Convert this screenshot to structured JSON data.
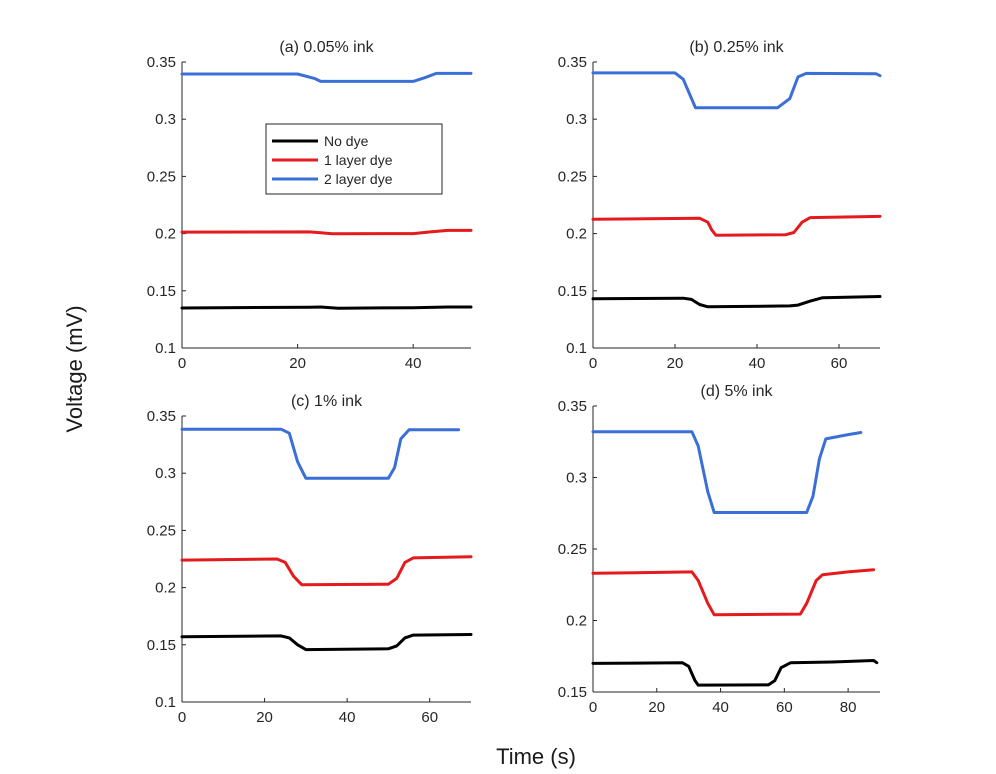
{
  "figure": {
    "ylabel": "Voltage (mV)",
    "xlabel": "Time (s)"
  },
  "legend": [
    {
      "label": "No dye",
      "color": "#000000"
    },
    {
      "label": "1 layer dye",
      "color": "#e41a1c"
    },
    {
      "label": "2 layer dye",
      "color": "#3a6fd8"
    }
  ],
  "chart_data": [
    {
      "type": "line",
      "title": "(a) 0.05% ink",
      "xlim": [
        0,
        50
      ],
      "ylim": [
        0.1,
        0.35
      ],
      "xticks": [
        0,
        20,
        40
      ],
      "yticks": [
        0.1,
        0.15,
        0.2,
        0.25,
        0.3,
        0.35
      ],
      "ytick_labels": [
        "0.1",
        "0.15",
        "0.2",
        "0.25",
        "0.3",
        "0.35"
      ],
      "has_legend": true,
      "series": [
        {
          "name": "No dye",
          "color": "#000000",
          "x": [
            0,
            22,
            24,
            27,
            40,
            46,
            50
          ],
          "y": [
            0.135,
            0.1357,
            0.1358,
            0.1348,
            0.1352,
            0.1358,
            0.1358
          ]
        },
        {
          "name": "1 layer dye",
          "color": "#e41a1c",
          "x": [
            0,
            22,
            24,
            26,
            40,
            43,
            46,
            50
          ],
          "y": [
            0.2013,
            0.2015,
            0.2008,
            0.1998,
            0.2,
            0.2015,
            0.2028,
            0.2028
          ]
        },
        {
          "name": "2 layer dye",
          "color": "#3a6fd8",
          "x": [
            0,
            20,
            23,
            24,
            40,
            42,
            44,
            50
          ],
          "y": [
            0.3395,
            0.3395,
            0.3355,
            0.333,
            0.333,
            0.3363,
            0.34,
            0.34
          ]
        }
      ]
    },
    {
      "type": "line",
      "title": "(b) 0.25% ink",
      "xlim": [
        0,
        70
      ],
      "ylim": [
        0.1,
        0.35
      ],
      "xticks": [
        0,
        20,
        40,
        60
      ],
      "yticks": [
        0.1,
        0.15,
        0.2,
        0.25,
        0.3,
        0.35
      ],
      "ytick_labels": [
        "0.1",
        "0.15",
        "0.2",
        "0.25",
        "0.3",
        "0.35"
      ],
      "has_legend": false,
      "series": [
        {
          "name": "No dye",
          "color": "#000000",
          "x": [
            0,
            22,
            24,
            26,
            28,
            48,
            50,
            53,
            56,
            70
          ],
          "y": [
            0.143,
            0.1435,
            0.1425,
            0.138,
            0.136,
            0.1368,
            0.1375,
            0.141,
            0.144,
            0.145
          ]
        },
        {
          "name": "1 layer dye",
          "color": "#e41a1c",
          "x": [
            0,
            26,
            28,
            29,
            30,
            47,
            49,
            51,
            53,
            70
          ],
          "y": [
            0.2125,
            0.2135,
            0.21,
            0.203,
            0.1985,
            0.199,
            0.201,
            0.21,
            0.214,
            0.215
          ]
        },
        {
          "name": "2 layer dye",
          "color": "#3a6fd8",
          "x": [
            0,
            20,
            22,
            25,
            45,
            48,
            50,
            52,
            69,
            70
          ],
          "y": [
            0.3405,
            0.3405,
            0.335,
            0.31,
            0.31,
            0.318,
            0.337,
            0.34,
            0.3398,
            0.338
          ]
        }
      ]
    },
    {
      "type": "line",
      "title": "(c) 1% ink",
      "xlim": [
        0,
        70
      ],
      "ylim": [
        0.1,
        0.35
      ],
      "xticks": [
        0,
        20,
        40,
        60
      ],
      "yticks": [
        0.1,
        0.15,
        0.2,
        0.25,
        0.3,
        0.35
      ],
      "ytick_labels": [
        "0.1",
        "0.15",
        "0.2",
        "0.25",
        "0.3",
        "0.35"
      ],
      "has_legend": false,
      "series": [
        {
          "name": "No dye",
          "color": "#000000",
          "x": [
            0,
            24,
            26,
            28,
            30,
            50,
            52,
            54,
            56,
            70
          ],
          "y": [
            0.157,
            0.1578,
            0.156,
            0.15,
            0.1458,
            0.1465,
            0.149,
            0.156,
            0.1585,
            0.159
          ]
        },
        {
          "name": "1 layer dye",
          "color": "#e41a1c",
          "x": [
            0,
            23,
            25,
            27,
            29,
            50,
            52,
            54,
            56,
            70
          ],
          "y": [
            0.224,
            0.225,
            0.222,
            0.21,
            0.2025,
            0.203,
            0.208,
            0.222,
            0.226,
            0.227
          ]
        },
        {
          "name": "2 layer dye",
          "color": "#3a6fd8",
          "x": [
            0,
            24,
            26,
            28,
            30,
            50,
            51.5,
            53,
            55,
            67
          ],
          "y": [
            0.3385,
            0.3385,
            0.335,
            0.31,
            0.2955,
            0.2955,
            0.305,
            0.33,
            0.338,
            0.338
          ]
        }
      ]
    },
    {
      "type": "line",
      "title": "(d) 5% ink",
      "xlim": [
        0,
        90
      ],
      "ylim": [
        0.15,
        0.35
      ],
      "xticks": [
        0,
        20,
        40,
        60,
        80
      ],
      "yticks": [
        0.15,
        0.2,
        0.25,
        0.3,
        0.35
      ],
      "ytick_labels": [
        "0.15",
        "0.2",
        "0.25",
        "0.3",
        "0.35"
      ],
      "has_legend": false,
      "series": [
        {
          "name": "No dye",
          "color": "#000000",
          "x": [
            0,
            28,
            30,
            32,
            33,
            55,
            57,
            59,
            62,
            75,
            88,
            89
          ],
          "y": [
            0.17,
            0.1705,
            0.168,
            0.158,
            0.1548,
            0.155,
            0.158,
            0.167,
            0.1705,
            0.171,
            0.172,
            0.1705
          ]
        },
        {
          "name": "1 layer dye",
          "color": "#e41a1c",
          "x": [
            0,
            31,
            33,
            36,
            38,
            65,
            67,
            70,
            72,
            80,
            88
          ],
          "y": [
            0.233,
            0.234,
            0.228,
            0.212,
            0.204,
            0.2045,
            0.212,
            0.228,
            0.232,
            0.234,
            0.2355
          ]
        },
        {
          "name": "2 layer dye",
          "color": "#3a6fd8",
          "x": [
            0,
            31,
            33,
            36,
            38,
            67,
            69,
            71,
            73,
            80,
            84
          ],
          "y": [
            0.332,
            0.332,
            0.322,
            0.29,
            0.2755,
            0.2755,
            0.287,
            0.313,
            0.327,
            0.33,
            0.3315
          ]
        }
      ]
    }
  ]
}
